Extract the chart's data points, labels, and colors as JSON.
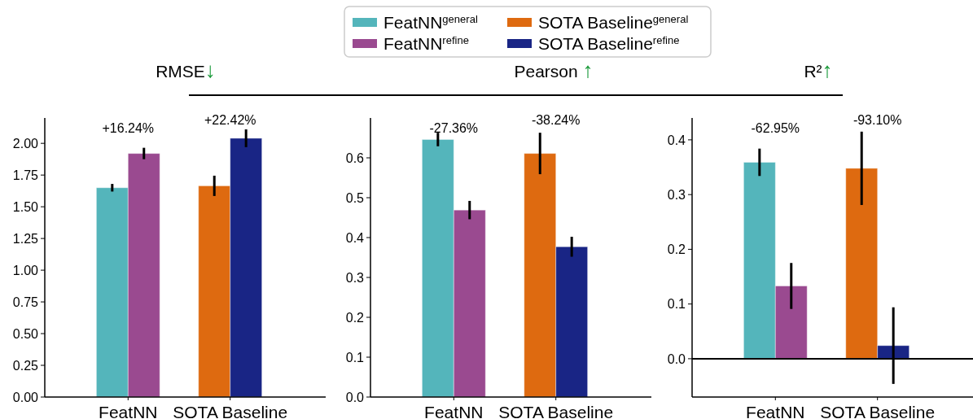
{
  "chart_data": [
    {
      "type": "bar",
      "title": "RMSE↓",
      "categories": [
        "FeatNN",
        "SOTA Baseline"
      ],
      "series": [
        {
          "color": "#54b5bb",
          "values": [
            1.65,
            null
          ],
          "errors": [
            0.03,
            null
          ]
        },
        {
          "color": "#9a4a90",
          "values": [
            1.92,
            null
          ],
          "errors": [
            0.045,
            null
          ]
        },
        {
          "color": "#de6a10",
          "values": [
            null,
            1.665
          ],
          "errors": [
            null,
            0.08
          ]
        },
        {
          "color": "#192585",
          "values": [
            null,
            2.04
          ],
          "errors": [
            null,
            0.07
          ]
        }
      ],
      "ylim": [
        0,
        2.2
      ],
      "yticks": [
        {
          "value": 0,
          "label": "0.00"
        },
        {
          "value": 0.25,
          "label": "0.25"
        },
        {
          "value": 0.5,
          "label": "0.50"
        },
        {
          "value": 0.75,
          "label": "0.75"
        },
        {
          "value": 1,
          "label": "1.00"
        },
        {
          "value": 1.25,
          "label": "1.25"
        },
        {
          "value": 1.5,
          "label": "1.50"
        },
        {
          "value": 1.75,
          "label": "1.75"
        },
        {
          "value": 2,
          "label": "2.00"
        }
      ],
      "annotations": [
        "+16.24%",
        "+22.42%"
      ],
      "grid": false,
      "legend": false
    },
    {
      "type": "bar",
      "title": "Pearson ↑",
      "categories": [
        "FeatNN",
        "SOTA Baseline"
      ],
      "series": [
        {
          "name": "FeatNN$^{general}$",
          "color": "#54b5bb",
          "values": [
            0.646,
            null
          ],
          "errors": [
            0.017,
            null
          ]
        },
        {
          "name": "FeatNN$^{refine}$",
          "color": "#9a4a90",
          "values": [
            0.469,
            null
          ],
          "errors": [
            0.023,
            null
          ]
        },
        {
          "name": "SOTA Baseline$^{general}$",
          "color": "#de6a10",
          "values": [
            null,
            0.611
          ],
          "errors": [
            null,
            0.052
          ]
        },
        {
          "name": "SOTA Baseline$^{refine}$",
          "color": "#192585",
          "values": [
            null,
            0.377
          ],
          "errors": [
            null,
            0.025
          ]
        }
      ],
      "ylim": [
        0,
        0.7
      ],
      "yticks": [
        {
          "value": 0,
          "label": "0.0"
        },
        0.1,
        0.2,
        0.3,
        0.4,
        0.5,
        0.6
      ],
      "annotations": [
        "-27.36%",
        "-38.24%"
      ],
      "grid": false,
      "legend": "top"
    },
    {
      "type": "bar",
      "title": "R²↑",
      "categories": [
        "FeatNN",
        "SOTA Baseline"
      ],
      "series": [
        {
          "color": "#54b5bb",
          "values": [
            0.359,
            null
          ],
          "errors": [
            0.025,
            null
          ]
        },
        {
          "color": "#9a4a90",
          "values": [
            0.133,
            null
          ],
          "errors": [
            0.042,
            null
          ]
        },
        {
          "color": "#de6a10",
          "values": [
            null,
            0.348
          ],
          "errors": [
            null,
            0.067
          ]
        },
        {
          "color": "#192585",
          "values": [
            null,
            0.024
          ],
          "errors": [
            null,
            0.07
          ]
        }
      ],
      "ylim": [
        -0.07,
        0.44
      ],
      "yticks": [
        {
          "value": 0,
          "label": "0.0"
        },
        0.1,
        0.2,
        0.3,
        0.4
      ],
      "ref_lines": [
        {
          "axis": "y",
          "value": 0,
          "color": "#000000"
        }
      ],
      "annotations": [
        "-62.95%",
        "-93.10%"
      ],
      "grid": false,
      "legend": false
    }
  ]
}
